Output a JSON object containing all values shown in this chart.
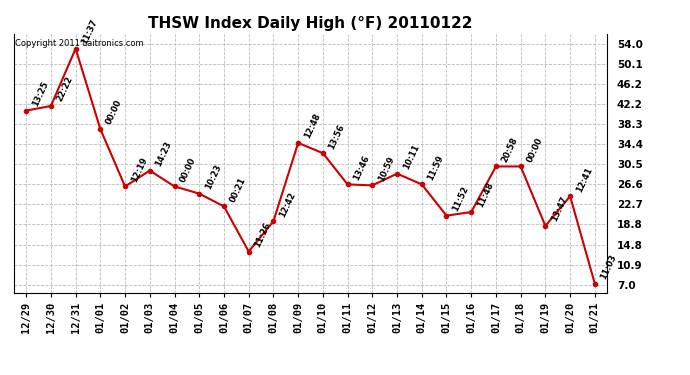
{
  "title": "THSW Index Daily High (°F) 20110122",
  "copyright": "Copyright 2011 Laitronics.com",
  "x_labels": [
    "12/29",
    "12/30",
    "12/31",
    "01/01",
    "01/02",
    "01/03",
    "01/04",
    "01/05",
    "01/06",
    "01/07",
    "01/08",
    "01/09",
    "01/10",
    "01/11",
    "01/12",
    "01/13",
    "01/14",
    "01/15",
    "01/16",
    "01/17",
    "01/18",
    "01/19",
    "01/20",
    "01/21"
  ],
  "y_values": [
    41.0,
    41.9,
    53.1,
    37.4,
    26.2,
    29.3,
    26.2,
    24.8,
    22.3,
    13.5,
    19.4,
    34.7,
    32.7,
    26.6,
    26.4,
    28.7,
    26.6,
    20.5,
    21.2,
    30.1,
    30.1,
    18.5,
    24.3,
    7.2
  ],
  "time_labels": [
    "13:25",
    "22:22",
    "11:37",
    "00:00",
    "12:19",
    "14:23",
    "00:00",
    "10:23",
    "00:21",
    "11:26",
    "12:42",
    "12:48",
    "13:56",
    "13:46",
    "10:59",
    "10:11",
    "11:59",
    "11:52",
    "11:48",
    "20:58",
    "00:00",
    "13:47",
    "12:41",
    "11:03"
  ],
  "line_color": "#cc0000",
  "marker_color": "#cc0000",
  "background_color": "#ffffff",
  "grid_color": "#bbbbbb",
  "yticks": [
    7.0,
    10.9,
    14.8,
    18.8,
    22.7,
    26.6,
    30.5,
    34.4,
    38.3,
    42.2,
    46.2,
    50.1,
    54.0
  ],
  "ylim": [
    5.5,
    56.0
  ],
  "title_fontsize": 11,
  "label_fontsize": 6.0,
  "tick_fontsize": 7.5,
  "copyright_fontsize": 6.0
}
